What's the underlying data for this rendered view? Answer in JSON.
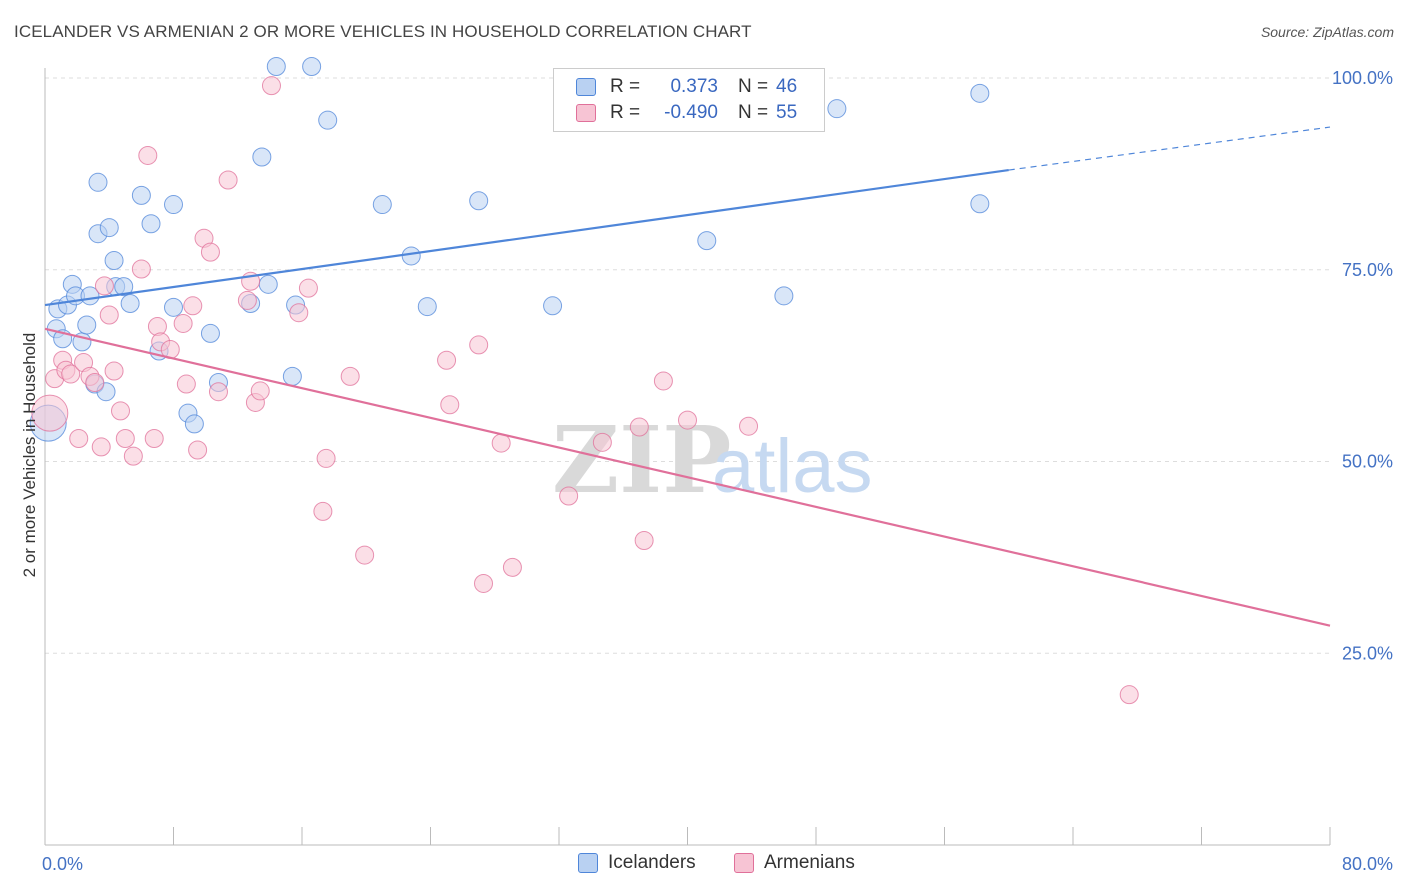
{
  "title": "ICELANDER VS ARMENIAN 2 OR MORE VEHICLES IN HOUSEHOLD CORRELATION CHART",
  "source": "Source: ZipAtlas.com",
  "watermark": {
    "zip": "ZIP",
    "atlas": "atlas"
  },
  "colors": {
    "blue": "#4f86d9",
    "blue_fill": "#b9d1f2",
    "pink": "#e0709a",
    "pink_fill": "#f7c4d4",
    "grid": "#dddddd",
    "axis_text": "#4472c4"
  },
  "legend": {
    "rows": [
      {
        "r_label": "R =",
        "r_value": "0.373",
        "n_label": "N =",
        "n_value": "46"
      },
      {
        "r_label": "R =",
        "r_value": "-0.490",
        "n_label": "N =",
        "n_value": "55"
      }
    ]
  },
  "chart_data": {
    "type": "scatter",
    "title": "ICELANDER VS ARMENIAN 2 OR MORE VEHICLES IN HOUSEHOLD CORRELATION CHART",
    "xlabel": "",
    "ylabel": "2 or more Vehicles in Household",
    "xlim": [
      0,
      80
    ],
    "ylim": [
      0,
      100
    ],
    "x_tick_labels": [
      "0.0%",
      "80.0%"
    ],
    "y_ticks": [
      25,
      50,
      75,
      100
    ],
    "y_tick_labels": [
      "25.0%",
      "50.0%",
      "75.0%",
      "100.0%"
    ],
    "grid": true,
    "legend_position": "bottom",
    "series": [
      {
        "name": "Icelanders",
        "color": "#4f86d9",
        "trend": {
          "x": [
            0,
            60
          ],
          "y": [
            70.4,
            88.0
          ],
          "dashed_to": [
            80,
            93.6
          ]
        },
        "points": [
          [
            0.2,
            55.0
          ],
          [
            0.7,
            67.3
          ],
          [
            0.8,
            69.9
          ],
          [
            1.1,
            66.0
          ],
          [
            1.4,
            70.4
          ],
          [
            1.7,
            73.1
          ],
          [
            1.9,
            71.6
          ],
          [
            2.3,
            65.6
          ],
          [
            2.6,
            67.8
          ],
          [
            2.8,
            71.6
          ],
          [
            3.1,
            60.1
          ],
          [
            3.3,
            79.7
          ],
          [
            3.3,
            86.4
          ],
          [
            3.8,
            59.1
          ],
          [
            4.0,
            80.5
          ],
          [
            4.3,
            76.2
          ],
          [
            4.4,
            72.8
          ],
          [
            4.9,
            72.8
          ],
          [
            5.3,
            70.6
          ],
          [
            6.0,
            84.7
          ],
          [
            6.6,
            81.0
          ],
          [
            7.1,
            64.4
          ],
          [
            8.0,
            70.1
          ],
          [
            8.0,
            83.5
          ],
          [
            8.9,
            56.3
          ],
          [
            9.3,
            54.9
          ],
          [
            10.3,
            66.7
          ],
          [
            10.8,
            60.3
          ],
          [
            12.8,
            70.6
          ],
          [
            13.5,
            89.7
          ],
          [
            13.9,
            73.1
          ],
          [
            14.4,
            101.5
          ],
          [
            15.4,
            61.1
          ],
          [
            15.6,
            70.4
          ],
          [
            16.6,
            101.5
          ],
          [
            17.6,
            94.5
          ],
          [
            21.0,
            83.5
          ],
          [
            22.8,
            76.8
          ],
          [
            23.8,
            70.2
          ],
          [
            27.0,
            84.0
          ],
          [
            31.6,
            70.3
          ],
          [
            41.2,
            78.8
          ],
          [
            46.0,
            71.6
          ],
          [
            49.3,
            96.0
          ],
          [
            58.2,
            83.6
          ],
          [
            58.2,
            98.0
          ]
        ]
      },
      {
        "name": "Armenians",
        "color": "#e0709a",
        "trend": {
          "x": [
            0,
            80
          ],
          "y": [
            67.3,
            28.6
          ]
        },
        "points": [
          [
            0.3,
            56.3
          ],
          [
            0.6,
            60.8
          ],
          [
            1.1,
            63.2
          ],
          [
            1.3,
            61.9
          ],
          [
            1.6,
            61.4
          ],
          [
            2.1,
            53.0
          ],
          [
            2.4,
            62.9
          ],
          [
            2.8,
            61.1
          ],
          [
            3.1,
            60.3
          ],
          [
            3.5,
            51.9
          ],
          [
            3.7,
            72.9
          ],
          [
            4.0,
            69.1
          ],
          [
            4.3,
            61.8
          ],
          [
            4.7,
            56.6
          ],
          [
            5.0,
            53.0
          ],
          [
            5.5,
            50.7
          ],
          [
            6.0,
            75.1
          ],
          [
            6.4,
            89.9
          ],
          [
            6.8,
            53.0
          ],
          [
            7.0,
            67.6
          ],
          [
            7.2,
            65.6
          ],
          [
            7.8,
            64.6
          ],
          [
            8.6,
            68.0
          ],
          [
            8.8,
            60.1
          ],
          [
            9.2,
            70.3
          ],
          [
            9.5,
            51.5
          ],
          [
            9.9,
            79.1
          ],
          [
            10.3,
            77.3
          ],
          [
            10.8,
            59.1
          ],
          [
            11.4,
            86.7
          ],
          [
            12.6,
            71.0
          ],
          [
            12.8,
            73.5
          ],
          [
            13.1,
            57.7
          ],
          [
            13.4,
            59.2
          ],
          [
            14.1,
            99.0
          ],
          [
            15.8,
            69.4
          ],
          [
            16.4,
            72.6
          ],
          [
            17.3,
            43.5
          ],
          [
            17.5,
            50.4
          ],
          [
            19.0,
            61.1
          ],
          [
            19.9,
            37.8
          ],
          [
            25.0,
            63.2
          ],
          [
            25.2,
            57.4
          ],
          [
            27.0,
            65.2
          ],
          [
            27.3,
            34.1
          ],
          [
            28.4,
            52.4
          ],
          [
            29.1,
            36.2
          ],
          [
            32.6,
            45.5
          ],
          [
            34.7,
            52.5
          ],
          [
            37.0,
            54.5
          ],
          [
            37.3,
            39.7
          ],
          [
            38.5,
            60.5
          ],
          [
            40.0,
            55.4
          ],
          [
            43.8,
            54.6
          ],
          [
            67.5,
            19.6
          ]
        ]
      }
    ]
  }
}
